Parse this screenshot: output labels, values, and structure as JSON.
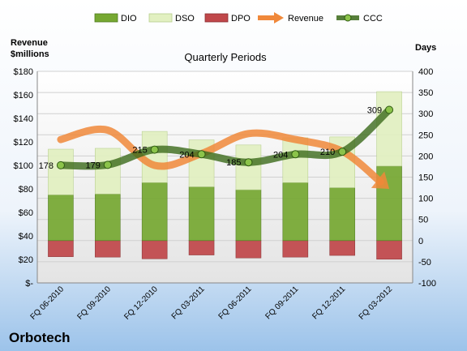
{
  "company": "Orbotech",
  "chart_data": {
    "type": "bar",
    "title": "Quarterly Periods",
    "left_axis_label_line1": "Revenue",
    "left_axis_label_line2": "$millions",
    "right_axis_label": "Days",
    "categories": [
      "FQ 06-2010",
      "FQ 09-2010",
      "FQ 12-2010",
      "FQ 03-2011",
      "FQ 06-2011",
      "FQ 09-2011",
      "FQ 12-2011",
      "FQ 03-2012"
    ],
    "left_ylim": [
      0,
      180
    ],
    "left_ticks": [
      "$-",
      "$20",
      "$40",
      "$60",
      "$80",
      "$100",
      "$120",
      "$140",
      "$160",
      "$180"
    ],
    "right_ylim": [
      -100,
      400
    ],
    "right_ticks": [
      "-100",
      "-50",
      "0",
      "50",
      "100",
      "150",
      "200",
      "250",
      "300",
      "350",
      "400"
    ],
    "legend_position": "top",
    "series": [
      {
        "name": "DIO",
        "kind": "bar",
        "axis": "right",
        "color": "#76a832",
        "values": [
          108,
          110,
          137,
          127,
          120,
          137,
          125,
          176
        ]
      },
      {
        "name": "DSO",
        "kind": "bar",
        "axis": "right",
        "color": "#e2f0c1",
        "values": [
          108,
          108,
          121,
          111,
          106,
          106,
          120,
          176
        ]
      },
      {
        "name": "DPO",
        "kind": "bar",
        "axis": "right",
        "color": "#c0474a",
        "values": [
          -38,
          -39,
          -43,
          -34,
          -41,
          -39,
          -35,
          -44
        ]
      },
      {
        "name": "Revenue",
        "kind": "line",
        "axis": "left",
        "color": "#f0883a",
        "values": [
          122,
          130,
          100,
          110,
          127,
          122,
          112,
          80
        ]
      },
      {
        "name": "CCC",
        "kind": "line",
        "axis": "right",
        "color": "#3b6a1a",
        "values": [
          178,
          179,
          215,
          204,
          185,
          204,
          210,
          309
        ]
      }
    ],
    "ccc_labels": [
      "178",
      "179",
      "215",
      "204",
      "185",
      "204",
      "210",
      "309"
    ]
  }
}
